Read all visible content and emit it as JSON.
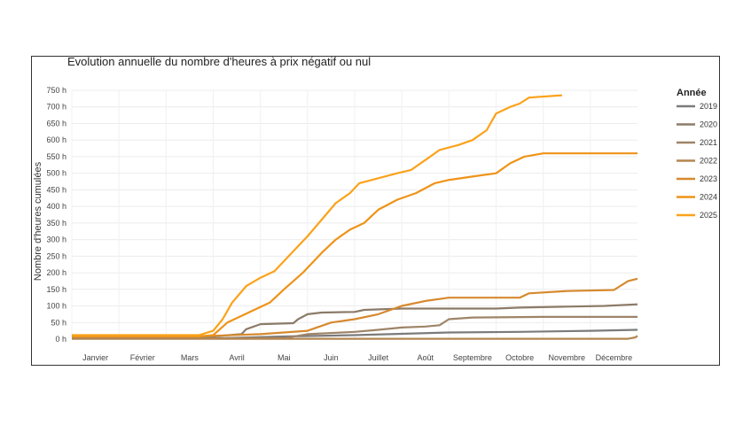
{
  "colors": {
    "2019": "#7b7b7b",
    "2020": "#8c7b68",
    "2021": "#9e8468",
    "2022": "#b48550",
    "2023": "#d6892e",
    "2024": "#ee9318",
    "2025": "#fba21a"
  },
  "chart_data": {
    "type": "line",
    "title": "Evolution annuelle du nombre d'heures à prix négatif ou nul",
    "ylabel": "Nombre d'heures cumulées",
    "xlabel": "",
    "ylim": [
      0,
      750
    ],
    "xlim": [
      0,
      12
    ],
    "grid": true,
    "legend_title": "Année",
    "legend_position": "right",
    "yticks": [
      0,
      50,
      100,
      150,
      200,
      250,
      300,
      350,
      400,
      450,
      500,
      550,
      600,
      650,
      700,
      750
    ],
    "ytick_labels": [
      "0 h",
      "50 h",
      "100 h",
      "150 h",
      "200 h",
      "250 h",
      "300 h",
      "350 h",
      "400 h",
      "450 h",
      "500 h",
      "550 h",
      "600 h",
      "650 h",
      "700 h",
      "750 h"
    ],
    "xtick_labels": [
      "Janvier",
      "Février",
      "Mars",
      "Avril",
      "Mai",
      "Juin",
      "Juillet",
      "Août",
      "Septembre",
      "Octobre",
      "Novembre",
      "Décembre"
    ],
    "x_unit": "month (0 = 1 janvier, 12 = 31 décembre)",
    "series": [
      {
        "name": "2019",
        "points": [
          [
            0,
            2
          ],
          [
            3.0,
            2
          ],
          [
            4.5,
            8
          ],
          [
            6.0,
            12
          ],
          [
            7.0,
            16
          ],
          [
            8.0,
            20
          ],
          [
            9.5,
            22
          ],
          [
            11.0,
            25
          ],
          [
            12.0,
            28
          ]
        ]
      },
      {
        "name": "2020",
        "points": [
          [
            0,
            5
          ],
          [
            2.5,
            5
          ],
          [
            3.0,
            8
          ],
          [
            3.6,
            15
          ],
          [
            3.7,
            30
          ],
          [
            4.0,
            45
          ],
          [
            4.7,
            48
          ],
          [
            4.8,
            60
          ],
          [
            5.0,
            75
          ],
          [
            5.3,
            80
          ],
          [
            6.0,
            82
          ],
          [
            6.2,
            88
          ],
          [
            7.0,
            92
          ],
          [
            9.0,
            92
          ],
          [
            9.5,
            95
          ],
          [
            10.5,
            98
          ],
          [
            11.3,
            100
          ],
          [
            12.0,
            105
          ]
        ]
      },
      {
        "name": "2021",
        "points": [
          [
            0,
            3
          ],
          [
            4.5,
            3
          ],
          [
            5.0,
            15
          ],
          [
            6.0,
            22
          ],
          [
            6.5,
            28
          ],
          [
            7.0,
            35
          ],
          [
            7.5,
            38
          ],
          [
            7.8,
            42
          ],
          [
            8.0,
            60
          ],
          [
            8.5,
            65
          ],
          [
            10.0,
            67
          ],
          [
            12.0,
            67
          ]
        ]
      },
      {
        "name": "2022",
        "points": [
          [
            0,
            1
          ],
          [
            11.8,
            1
          ],
          [
            11.95,
            5
          ],
          [
            12.0,
            10
          ]
        ]
      },
      {
        "name": "2023",
        "points": [
          [
            0,
            8
          ],
          [
            3.0,
            10
          ],
          [
            4.0,
            15
          ],
          [
            5.0,
            25
          ],
          [
            5.5,
            50
          ],
          [
            6.0,
            60
          ],
          [
            6.5,
            75
          ],
          [
            7.0,
            100
          ],
          [
            7.5,
            115
          ],
          [
            8.0,
            125
          ],
          [
            9.5,
            125
          ],
          [
            9.7,
            138
          ],
          [
            10.5,
            145
          ],
          [
            11.5,
            148
          ],
          [
            11.8,
            175
          ],
          [
            12.0,
            182
          ]
        ]
      },
      {
        "name": "2024",
        "points": [
          [
            0,
            8
          ],
          [
            2.7,
            8
          ],
          [
            3.0,
            12
          ],
          [
            3.3,
            50
          ],
          [
            3.6,
            70
          ],
          [
            3.9,
            90
          ],
          [
            4.2,
            110
          ],
          [
            4.5,
            150
          ],
          [
            4.9,
            200
          ],
          [
            5.3,
            260
          ],
          [
            5.6,
            300
          ],
          [
            5.9,
            330
          ],
          [
            6.2,
            350
          ],
          [
            6.5,
            390
          ],
          [
            6.9,
            420
          ],
          [
            7.3,
            440
          ],
          [
            7.7,
            470
          ],
          [
            8.0,
            480
          ],
          [
            8.5,
            490
          ],
          [
            9.0,
            500
          ],
          [
            9.3,
            530
          ],
          [
            9.6,
            550
          ],
          [
            10.0,
            560
          ],
          [
            12.0,
            560
          ]
        ]
      },
      {
        "name": "2025",
        "points": [
          [
            0,
            12
          ],
          [
            2.7,
            12
          ],
          [
            3.0,
            25
          ],
          [
            3.2,
            60
          ],
          [
            3.4,
            110
          ],
          [
            3.7,
            160
          ],
          [
            4.0,
            185
          ],
          [
            4.3,
            205
          ],
          [
            4.6,
            250
          ],
          [
            5.0,
            310
          ],
          [
            5.3,
            360
          ],
          [
            5.6,
            410
          ],
          [
            5.9,
            440
          ],
          [
            6.1,
            470
          ],
          [
            6.5,
            485
          ],
          [
            6.9,
            500
          ],
          [
            7.2,
            510
          ],
          [
            7.5,
            540
          ],
          [
            7.8,
            570
          ],
          [
            8.2,
            585
          ],
          [
            8.5,
            600
          ],
          [
            8.8,
            630
          ],
          [
            9.0,
            680
          ],
          [
            9.3,
            700
          ],
          [
            9.5,
            710
          ],
          [
            9.7,
            728
          ],
          [
            10.4,
            735
          ]
        ]
      }
    ]
  }
}
